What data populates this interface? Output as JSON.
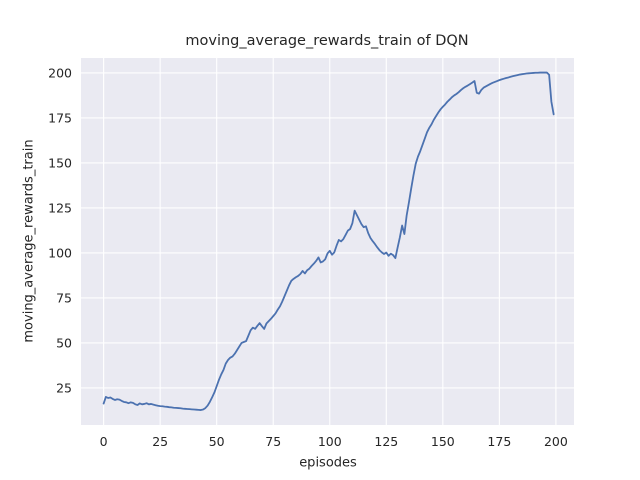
{
  "colors": {
    "figure_background": "#FFFFFF",
    "axes_background": "#EAEAF2",
    "gridline": "#FFFFFF",
    "line": "#4C72B0",
    "text": "#262626"
  },
  "chart_data": {
    "type": "line",
    "title": "moving_average_rewards_train of DQN",
    "xlabel": "episodes",
    "ylabel": "moving_average_rewards_train",
    "grid": true,
    "legend_position": "none",
    "x_ticks": [
      0,
      25,
      50,
      75,
      100,
      125,
      150,
      175,
      200
    ],
    "y_ticks": [
      25,
      50,
      75,
      100,
      125,
      150,
      175,
      200
    ],
    "xlim": [
      -10,
      208
    ],
    "ylim": [
      4.4,
      208.3
    ],
    "series": [
      {
        "name": "moving_average_rewards_train",
        "x_start": 0,
        "x_step": 1,
        "values": [
          16.3,
          20.0,
          19.4,
          19.7,
          18.9,
          18.3,
          18.7,
          18.5,
          17.8,
          17.2,
          17.0,
          16.5,
          17.0,
          16.7,
          15.9,
          15.5,
          16.4,
          15.9,
          16.1,
          16.5,
          15.9,
          16.1,
          15.7,
          15.4,
          15.1,
          14.9,
          14.8,
          14.6,
          14.5,
          14.3,
          14.2,
          14.0,
          13.9,
          13.8,
          13.7,
          13.5,
          13.4,
          13.3,
          13.2,
          13.1,
          13.0,
          12.9,
          12.8,
          12.7,
          13.0,
          13.8,
          15.2,
          17.3,
          19.8,
          22.5,
          26.0,
          29.5,
          32.5,
          35.0,
          38.5,
          40.5,
          41.8,
          42.5,
          44.0,
          46.0,
          48.0,
          50.0,
          50.5,
          51.0,
          54.0,
          57.0,
          58.5,
          57.8,
          59.5,
          61.0,
          59.3,
          57.8,
          60.8,
          62.1,
          63.4,
          64.9,
          66.4,
          68.5,
          70.4,
          73.0,
          76.0,
          79.0,
          82.0,
          84.5,
          85.6,
          86.5,
          87.2,
          88.3,
          90.0,
          88.6,
          90.4,
          91.3,
          92.8,
          94.1,
          95.6,
          97.5,
          94.7,
          95.3,
          96.5,
          99.7,
          101.2,
          99.0,
          100.3,
          104.0,
          107.2,
          106.4,
          107.7,
          110.0,
          112.4,
          113.3,
          116.5,
          123.5,
          121.0,
          118.5,
          116.0,
          114.3,
          114.8,
          111.0,
          108.3,
          106.5,
          104.9,
          103.1,
          101.5,
          100.3,
          99.4,
          100.2,
          98.4,
          99.6,
          98.8,
          97.1,
          103.0,
          108.7,
          115.2,
          110.5,
          120.8,
          128.0,
          135.7,
          143.0,
          149.5,
          153.5,
          156.5,
          160.0,
          163.5,
          167.0,
          169.5,
          171.5,
          174.0,
          176.0,
          178.0,
          179.8,
          181.2,
          182.5,
          184.0,
          185.2,
          186.5,
          187.5,
          188.3,
          189.3,
          190.5,
          191.5,
          192.3,
          193.0,
          193.8,
          194.6,
          195.5,
          189.0,
          188.5,
          190.5,
          191.8,
          192.5,
          193.2,
          193.9,
          194.5,
          195.0,
          195.5,
          196.0,
          196.4,
          196.8,
          197.2,
          197.5,
          197.9,
          198.2,
          198.5,
          198.8,
          199.1,
          199.3,
          199.5,
          199.7,
          199.8,
          199.9,
          200.0,
          200.1,
          200.1,
          200.2,
          200.2,
          200.2,
          200.2,
          199.0,
          184.0,
          177.0
        ]
      }
    ]
  }
}
